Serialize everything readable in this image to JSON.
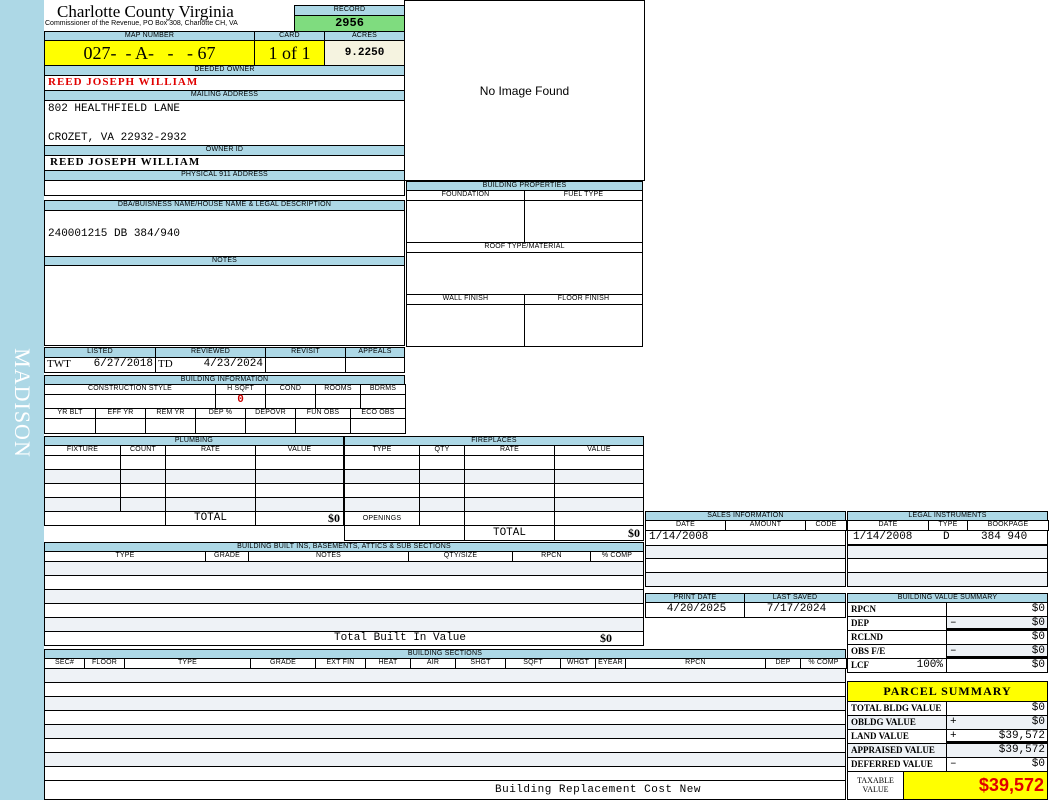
{
  "sidebar": {
    "label": "MADISON"
  },
  "header": {
    "title": "Charlotte County Virginia",
    "subtitle": "Commissioner of the Revenue, PO Box 308, Charlotte CH, VA",
    "record_label": "RECORD",
    "record": "2956",
    "map_label": "MAP NUMBER",
    "map_number": "027-  - A-   -   - 67",
    "card_label": "CARD",
    "card": "1 of 1",
    "acres_label": "ACRES",
    "acres": "9.2250"
  },
  "owner": {
    "deeded_label": "DEEDED OWNER",
    "deeded": "REED JOSEPH WILLIAM",
    "mailing_label": "MAILING ADDRESS",
    "address1": "802 HEALTHFIELD LANE",
    "address2": "CROZET, VA 22932-2932",
    "owner_id_label": "OWNER ID",
    "owner_id": "REED JOSEPH WILLIAM",
    "physical_label": "PHYSICAL 911 ADDRESS",
    "physical": ""
  },
  "image": {
    "placeholder": "No Image Found"
  },
  "building_properties": {
    "label": "BUILDING PROPERTIES",
    "foundation": "FOUNDATION",
    "fuel": "FUEL TYPE",
    "roof": "ROOF TYPE/MATERIAL",
    "wall": "WALL FINISH",
    "floor": "FLOOR FINISH"
  },
  "legal": {
    "dba_label": "DBA/BUISNESS NAME/HOUSE NAME & LEGAL DESCRIPTION",
    "dba": "240001215 DB 384/940",
    "notes_label": "NOTES"
  },
  "review": {
    "listed_label": "LISTED",
    "listed_by": "TWT",
    "listed_date": "6/27/2018",
    "reviewed_label": "REVIEWED",
    "reviewed_by": "TD",
    "reviewed_date": "4/23/2024",
    "revisit_label": "REVISIT",
    "appeals_label": "APPEALS"
  },
  "building_info": {
    "label": "BUILDING INFORMATION",
    "row1": [
      "CONSTRUCTION STYLE",
      "H SQFT",
      "COND",
      "ROOMS",
      "BDRMS"
    ],
    "hsqft": "0",
    "row2": [
      "YR BLT",
      "EFF YR",
      "REM YR",
      "DEP %",
      "DEPOVR",
      "FUN OBS",
      "ECO OBS"
    ]
  },
  "plumbing": {
    "label": "PLUMBING",
    "headers": [
      "FIXTURE",
      "COUNT",
      "RATE",
      "VALUE"
    ],
    "total_label": "TOTAL",
    "total": "$0"
  },
  "fireplaces": {
    "label": "FIREPLACES",
    "headers": [
      "TYPE",
      "QTY",
      "RATE",
      "VALUE"
    ],
    "openings": "OPENINGS",
    "total_label": "TOTAL",
    "total": "$0"
  },
  "built_ins": {
    "label": "BUILDING BUILT INS, BASEMENTS, ATTICS & SUB SECTIONS",
    "headers": [
      "TYPE",
      "GRADE",
      "NOTES",
      "QTY/SIZE",
      "RPCN",
      "% COMP"
    ],
    "total_label": "Total Built In Value",
    "total": "$0"
  },
  "sections": {
    "label": "BUILDING SECTIONS",
    "headers": [
      "SEC#",
      "FLOOR",
      "TYPE",
      "GRADE",
      "EXT FIN",
      "HEAT",
      "AIR",
      "SHGT",
      "SQFT",
      "WHGT",
      "EYEAR",
      "RPCN",
      "DEP",
      "% COMP"
    ],
    "footer": "Building Replacement Cost New"
  },
  "sales": {
    "label": "SALES INFORMATION",
    "headers": [
      "DATE",
      "AMOUNT",
      "CODE"
    ],
    "rows": [
      {
        "date": "1/14/2008",
        "amount": "",
        "code": ""
      }
    ]
  },
  "instruments": {
    "label": "LEGAL INSTRUMENTS",
    "headers": [
      "DATE",
      "TYPE",
      "BOOKPAGE"
    ],
    "rows": [
      {
        "date": "1/14/2008",
        "type": "D",
        "bookpage": "384 940"
      }
    ]
  },
  "dates": {
    "print_label": "PRINT DATE",
    "print": "4/20/2025",
    "saved_label": "LAST SAVED",
    "saved": "7/17/2024"
  },
  "value_summary": {
    "label": "BUILDING VALUE SUMMARY",
    "rows": [
      {
        "name": "RPCN",
        "extra": "",
        "sign": "",
        "value": "$0"
      },
      {
        "name": "DEP",
        "extra": "",
        "sign": "–",
        "value": "$0"
      },
      {
        "name": "RCLND",
        "extra": "",
        "sign": "",
        "value": "$0"
      },
      {
        "name": "OBS F/E",
        "extra": "",
        "sign": "–",
        "value": "$0"
      },
      {
        "name": "LCF",
        "extra": "100%",
        "sign": "",
        "value": "$0"
      }
    ]
  },
  "parcel": {
    "label": "PARCEL SUMMARY",
    "rows": [
      {
        "name": "TOTAL BLDG VALUE",
        "sign": "",
        "value": "$0"
      },
      {
        "name": "OBLDG VALUE",
        "sign": "+",
        "value": "$0"
      },
      {
        "name": "LAND VALUE",
        "sign": "+",
        "value": "$39,572"
      },
      {
        "name": "APPRAISED VALUE",
        "sign": "",
        "value": "$39,572"
      },
      {
        "name": "DEFERRED VALUE",
        "sign": "–",
        "value": "$0"
      }
    ],
    "taxable_label": "TAXABLE VALUE",
    "taxable": "$39,572"
  },
  "colors": {
    "header_blue": "#add8e6",
    "highlight_yellow": "#ffff00",
    "record_green": "#7fdc7f",
    "owner_red": "#e00000"
  }
}
